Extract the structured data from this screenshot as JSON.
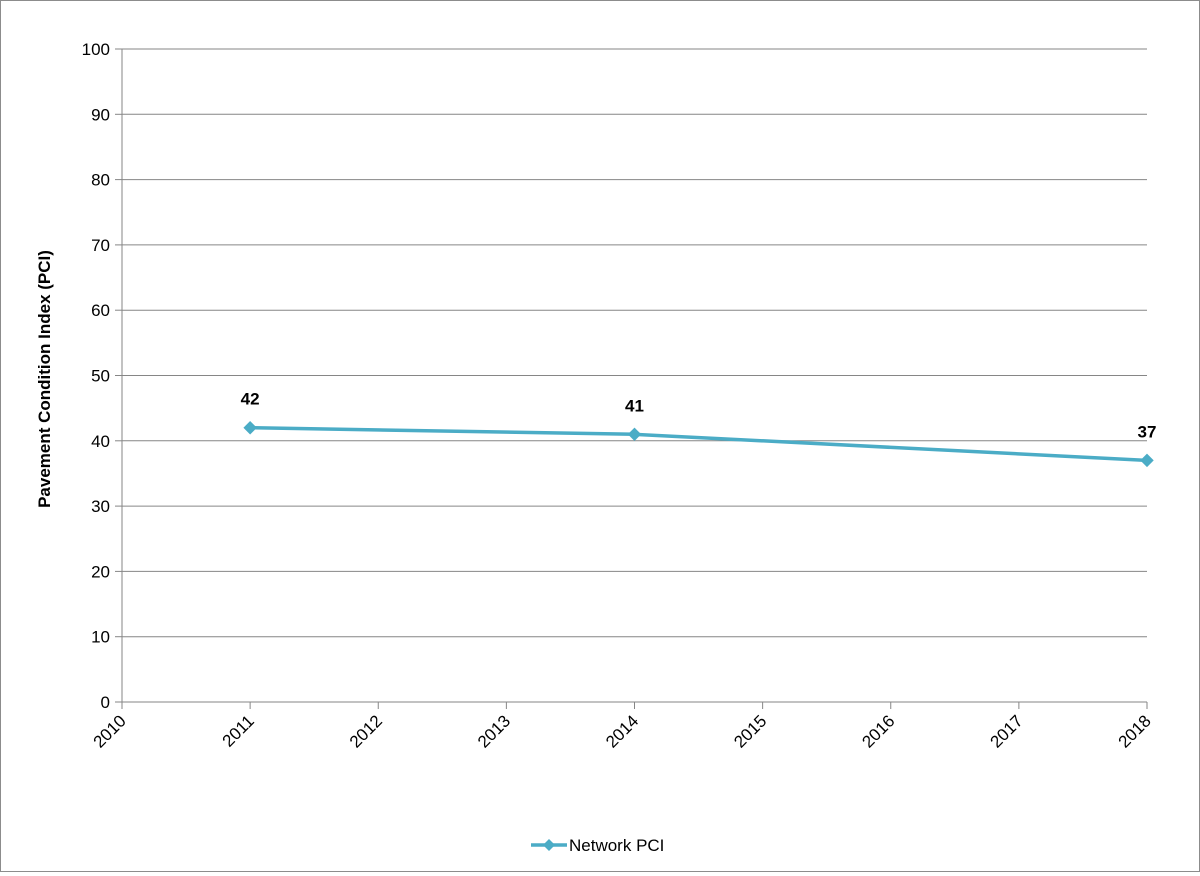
{
  "chart_data": {
    "type": "line",
    "title": "",
    "xlabel": "",
    "ylabel": "Pavement Condition Index (PCI)",
    "xlim": [
      2010,
      2018
    ],
    "ylim": [
      0,
      100
    ],
    "x_ticks": [
      "2010",
      "2011",
      "2012",
      "2013",
      "2014",
      "2015",
      "2016",
      "2017",
      "2018"
    ],
    "y_ticks": [
      "0",
      "10",
      "20",
      "30",
      "40",
      "50",
      "60",
      "70",
      "80",
      "90",
      "100"
    ],
    "grid": true,
    "legend_position": "bottom",
    "series": [
      {
        "name": "Network PCI",
        "color": "#4bacc6",
        "marker": "diamond",
        "points": [
          {
            "x": 2011,
            "y": 42,
            "label": "42"
          },
          {
            "x": 2014,
            "y": 41,
            "label": "41"
          },
          {
            "x": 2018,
            "y": 37,
            "label": "37"
          }
        ]
      }
    ]
  }
}
